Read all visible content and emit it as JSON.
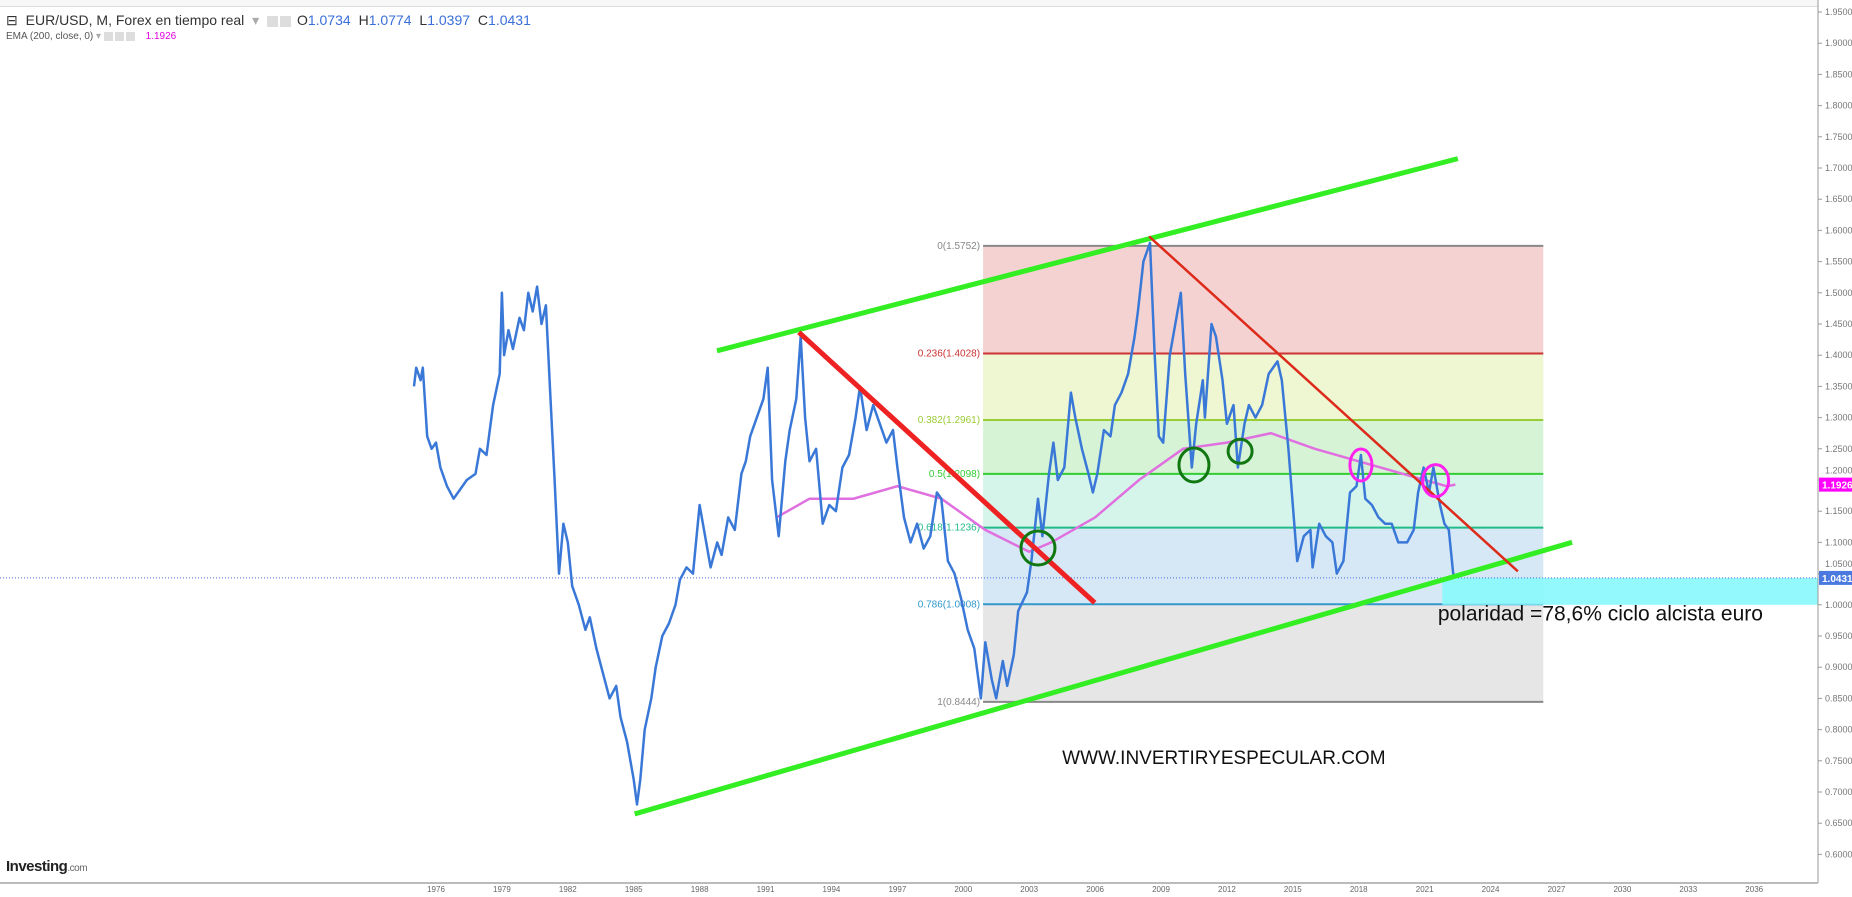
{
  "header": {
    "symbol": "EUR/USD, M, Forex en tiempo real",
    "open_label": "O",
    "open": "1.0734",
    "high_label": "H",
    "high": "1.0774",
    "low_label": "L",
    "low": "1.0397",
    "close_label": "C",
    "close": "1.0431",
    "indicator": "EMA (200, close, 0)",
    "indicator_value": "1.1926"
  },
  "logo": {
    "text": "Investing",
    "suffix": ".com"
  },
  "colors": {
    "price": "#3a78d8",
    "ema": "#e070e0",
    "channel": "#33ee22",
    "trend": "#ee2222",
    "last_price": "#4a7ae0",
    "ema_label": "#ff00ff",
    "zone": "#88f8fc"
  },
  "chart_data": {
    "type": "line",
    "title": "",
    "xlabel": "",
    "ylabel": "",
    "xlim": [
      1969.6,
      2039.2
    ],
    "ylim": [
      0.5836,
      1.969
    ],
    "x_ticks": [
      1976,
      1979,
      1982,
      1985,
      1988,
      1991,
      1994,
      1997,
      2000,
      2003,
      2006,
      2009,
      2012,
      2015,
      2018,
      2021,
      2024,
      2027,
      2030,
      2033,
      2036
    ],
    "y_ticks": [
      "0.6000",
      "0.6500",
      "0.7000",
      "0.7500",
      "0.8000",
      "0.8500",
      "0.9000",
      "0.9500",
      "1.0000",
      "1.0500",
      "1.1000",
      "1.1500",
      "1.2000",
      "1.2500",
      "1.3000",
      "1.3500",
      "1.4000",
      "1.4500",
      "1.5000",
      "1.5500",
      "1.6000",
      "1.6500",
      "1.7000",
      "1.7500",
      "1.8000",
      "1.8500",
      "1.9000",
      "1.9500"
    ],
    "last_price": "1.0431",
    "ema_last": "1.1926",
    "series": [
      {
        "name": "EUR/USD",
        "points": [
          [
            1975.0,
            1.35
          ],
          [
            1975.1,
            1.38
          ],
          [
            1975.3,
            1.36
          ],
          [
            1975.4,
            1.38
          ],
          [
            1975.6,
            1.27
          ],
          [
            1975.8,
            1.25
          ],
          [
            1976.0,
            1.26
          ],
          [
            1976.2,
            1.22
          ],
          [
            1976.5,
            1.19
          ],
          [
            1976.8,
            1.17
          ],
          [
            1977.0,
            1.18
          ],
          [
            1977.4,
            1.2
          ],
          [
            1977.8,
            1.21
          ],
          [
            1978.0,
            1.25
          ],
          [
            1978.3,
            1.24
          ],
          [
            1978.6,
            1.32
          ],
          [
            1978.9,
            1.37
          ],
          [
            1979.0,
            1.5
          ],
          [
            1979.1,
            1.4
          ],
          [
            1979.3,
            1.44
          ],
          [
            1979.5,
            1.41
          ],
          [
            1979.8,
            1.46
          ],
          [
            1980.0,
            1.44
          ],
          [
            1980.2,
            1.5
          ],
          [
            1980.4,
            1.47
          ],
          [
            1980.6,
            1.51
          ],
          [
            1980.8,
            1.45
          ],
          [
            1981.0,
            1.48
          ],
          [
            1981.2,
            1.34
          ],
          [
            1981.4,
            1.2
          ],
          [
            1981.6,
            1.05
          ],
          [
            1981.8,
            1.13
          ],
          [
            1982.0,
            1.1
          ],
          [
            1982.2,
            1.03
          ],
          [
            1982.5,
            1.0
          ],
          [
            1982.8,
            0.96
          ],
          [
            1983.0,
            0.98
          ],
          [
            1983.3,
            0.93
          ],
          [
            1983.6,
            0.89
          ],
          [
            1983.9,
            0.85
          ],
          [
            1984.2,
            0.87
          ],
          [
            1984.4,
            0.82
          ],
          [
            1984.7,
            0.78
          ],
          [
            1985.0,
            0.72
          ],
          [
            1985.15,
            0.68
          ],
          [
            1985.3,
            0.72
          ],
          [
            1985.5,
            0.8
          ],
          [
            1985.8,
            0.85
          ],
          [
            1986.0,
            0.9
          ],
          [
            1986.3,
            0.95
          ],
          [
            1986.6,
            0.97
          ],
          [
            1986.9,
            1.0
          ],
          [
            1987.1,
            1.04
          ],
          [
            1987.4,
            1.06
          ],
          [
            1987.7,
            1.05
          ],
          [
            1988.0,
            1.16
          ],
          [
            1988.2,
            1.12
          ],
          [
            1988.5,
            1.06
          ],
          [
            1988.8,
            1.1
          ],
          [
            1989.0,
            1.08
          ],
          [
            1989.3,
            1.14
          ],
          [
            1989.6,
            1.12
          ],
          [
            1989.9,
            1.21
          ],
          [
            1990.1,
            1.23
          ],
          [
            1990.3,
            1.27
          ],
          [
            1990.6,
            1.3
          ],
          [
            1990.9,
            1.33
          ],
          [
            1991.1,
            1.38
          ],
          [
            1991.3,
            1.2
          ],
          [
            1991.6,
            1.11
          ],
          [
            1991.9,
            1.23
          ],
          [
            1992.1,
            1.28
          ],
          [
            1992.4,
            1.33
          ],
          [
            1992.6,
            1.43
          ],
          [
            1992.8,
            1.3
          ],
          [
            1993.0,
            1.23
          ],
          [
            1993.3,
            1.25
          ],
          [
            1993.6,
            1.13
          ],
          [
            1993.9,
            1.16
          ],
          [
            1994.2,
            1.15
          ],
          [
            1994.5,
            1.22
          ],
          [
            1994.8,
            1.24
          ],
          [
            1995.1,
            1.3
          ],
          [
            1995.3,
            1.35
          ],
          [
            1995.6,
            1.28
          ],
          [
            1995.9,
            1.32
          ],
          [
            1996.2,
            1.29
          ],
          [
            1996.5,
            1.26
          ],
          [
            1996.8,
            1.28
          ],
          [
            1997.0,
            1.22
          ],
          [
            1997.3,
            1.14
          ],
          [
            1997.6,
            1.1
          ],
          [
            1997.9,
            1.13
          ],
          [
            1998.2,
            1.09
          ],
          [
            1998.5,
            1.11
          ],
          [
            1998.8,
            1.18
          ],
          [
            1999.0,
            1.17
          ],
          [
            1999.3,
            1.07
          ],
          [
            1999.6,
            1.05
          ],
          [
            1999.9,
            1.01
          ],
          [
            2000.2,
            0.96
          ],
          [
            2000.5,
            0.93
          ],
          [
            2000.8,
            0.85
          ],
          [
            2001.0,
            0.94
          ],
          [
            2001.3,
            0.88
          ],
          [
            2001.5,
            0.85
          ],
          [
            2001.8,
            0.91
          ],
          [
            2002.0,
            0.87
          ],
          [
            2002.3,
            0.92
          ],
          [
            2002.5,
            0.99
          ],
          [
            2002.9,
            1.02
          ],
          [
            2003.1,
            1.07
          ],
          [
            2003.4,
            1.17
          ],
          [
            2003.6,
            1.11
          ],
          [
            2003.9,
            1.21
          ],
          [
            2004.1,
            1.26
          ],
          [
            2004.3,
            1.2
          ],
          [
            2004.6,
            1.22
          ],
          [
            2004.9,
            1.34
          ],
          [
            2005.1,
            1.3
          ],
          [
            2005.4,
            1.25
          ],
          [
            2005.7,
            1.21
          ],
          [
            2005.9,
            1.18
          ],
          [
            2006.1,
            1.21
          ],
          [
            2006.4,
            1.28
          ],
          [
            2006.7,
            1.27
          ],
          [
            2006.9,
            1.32
          ],
          [
            2007.2,
            1.34
          ],
          [
            2007.5,
            1.37
          ],
          [
            2007.8,
            1.43
          ],
          [
            2007.95,
            1.47
          ],
          [
            2008.2,
            1.55
          ],
          [
            2008.5,
            1.58
          ],
          [
            2008.7,
            1.41
          ],
          [
            2008.9,
            1.27
          ],
          [
            2009.1,
            1.26
          ],
          [
            2009.4,
            1.4
          ],
          [
            2009.7,
            1.46
          ],
          [
            2009.9,
            1.5
          ],
          [
            2010.1,
            1.37
          ],
          [
            2010.4,
            1.22
          ],
          [
            2010.6,
            1.29
          ],
          [
            2010.9,
            1.36
          ],
          [
            2011.0,
            1.3
          ],
          [
            2011.3,
            1.45
          ],
          [
            2011.5,
            1.43
          ],
          [
            2011.8,
            1.36
          ],
          [
            2012.0,
            1.29
          ],
          [
            2012.3,
            1.32
          ],
          [
            2012.5,
            1.22
          ],
          [
            2012.8,
            1.29
          ],
          [
            2013.0,
            1.32
          ],
          [
            2013.3,
            1.3
          ],
          [
            2013.6,
            1.32
          ],
          [
            2013.9,
            1.37
          ],
          [
            2014.3,
            1.39
          ],
          [
            2014.5,
            1.36
          ],
          [
            2014.8,
            1.25
          ],
          [
            2015.0,
            1.16
          ],
          [
            2015.2,
            1.07
          ],
          [
            2015.5,
            1.11
          ],
          [
            2015.8,
            1.12
          ],
          [
            2015.9,
            1.06
          ],
          [
            2016.2,
            1.13
          ],
          [
            2016.5,
            1.11
          ],
          [
            2016.8,
            1.1
          ],
          [
            2017.0,
            1.05
          ],
          [
            2017.3,
            1.07
          ],
          [
            2017.6,
            1.18
          ],
          [
            2017.9,
            1.19
          ],
          [
            2018.1,
            1.24
          ],
          [
            2018.3,
            1.17
          ],
          [
            2018.6,
            1.16
          ],
          [
            2018.9,
            1.14
          ],
          [
            2019.2,
            1.13
          ],
          [
            2019.5,
            1.13
          ],
          [
            2019.8,
            1.1
          ],
          [
            2020.2,
            1.1
          ],
          [
            2020.5,
            1.12
          ],
          [
            2020.7,
            1.18
          ],
          [
            2020.95,
            1.22
          ],
          [
            2021.2,
            1.18
          ],
          [
            2021.4,
            1.22
          ],
          [
            2021.7,
            1.16
          ],
          [
            2021.9,
            1.13
          ],
          [
            2022.1,
            1.12
          ],
          [
            2022.3,
            1.05
          ],
          [
            2022.4,
            1.0431
          ]
        ]
      },
      {
        "name": "EMA (200, close, 0)",
        "points": [
          [
            1991.5,
            1.14
          ],
          [
            1993,
            1.17
          ],
          [
            1995,
            1.17
          ],
          [
            1997,
            1.19
          ],
          [
            1999,
            1.17
          ],
          [
            2001,
            1.12
          ],
          [
            2003,
            1.085
          ],
          [
            2004,
            1.1
          ],
          [
            2006,
            1.14
          ],
          [
            2008,
            1.2
          ],
          [
            2010,
            1.25
          ],
          [
            2012,
            1.26
          ],
          [
            2014,
            1.275
          ],
          [
            2016,
            1.25
          ],
          [
            2018,
            1.23
          ],
          [
            2020,
            1.21
          ],
          [
            2022,
            1.19
          ],
          [
            2022.4,
            1.1926
          ]
        ]
      }
    ],
    "fibonacci": {
      "range": [
        2000.9,
        2026.4
      ],
      "levels": [
        {
          "ratio": 0,
          "label": "0(1.5752)",
          "price": 1.5752,
          "color": "#888888",
          "fill": "#f5d2d2"
        },
        {
          "ratio": 0.236,
          "label": "0.236(1.4028)",
          "price": 1.4028,
          "color": "#cc3333",
          "fill": "#eef6d2"
        },
        {
          "ratio": 0.382,
          "label": "0.382(1.2961)",
          "price": 1.2961,
          "color": "#99cc33",
          "fill": "#d6f3d6"
        },
        {
          "ratio": 0.5,
          "label": "0.5(1.2098)",
          "price": 1.2098,
          "color": "#33cc33",
          "fill": "#d6f5ea"
        },
        {
          "ratio": 0.618,
          "label": "0.618(1.1236)",
          "price": 1.1236,
          "color": "#22bb88",
          "fill": "#d6e8f5"
        },
        {
          "ratio": 0.786,
          "label": "0.786(1.0008)",
          "price": 1.0008,
          "color": "#3399cc",
          "fill": "#e6e6e6"
        },
        {
          "ratio": 1,
          "label": "1(0.8444)",
          "price": 0.8444,
          "color": "#888888",
          "fill": null
        }
      ]
    },
    "trendlines": [
      {
        "name": "upper-channel",
        "color": "#33ee22",
        "from": [
          1988.9,
          1.408
        ],
        "to": [
          2022.4,
          1.714
        ]
      },
      {
        "name": "lower-channel",
        "color": "#33ee22",
        "from": [
          1985.15,
          0.666
        ],
        "to": [
          2027.6,
          1.099
        ]
      },
      {
        "name": "downtrend-1992",
        "color": "#ee2222",
        "from": [
          1992.6,
          1.434
        ],
        "to": [
          2005.9,
          1.006
        ]
      },
      {
        "name": "downtrend-2008",
        "color": "#dd2a1a",
        "from": [
          2008.5,
          1.589
        ],
        "to": [
          2025.2,
          1.055
        ]
      }
    ],
    "zone": {
      "from_year": 2021.8,
      "top": 1.0431,
      "bottom": 1.0
    },
    "markers": [
      {
        "type": "green-circle",
        "at": [
          2003.4,
          1.091
        ]
      },
      {
        "type": "green-circle",
        "at": [
          2010.5,
          1.224
        ]
      },
      {
        "type": "green-circle",
        "at": [
          2012.6,
          1.246
        ]
      },
      {
        "type": "magenta-ellipse",
        "at": [
          2018.1,
          1.224
        ]
      },
      {
        "type": "magenta-ellipse",
        "at": [
          2021.5,
          1.199
        ]
      }
    ],
    "annotations": [
      {
        "text": "polaridad =78,6% ciclo alcista euro",
        "at": [
          2021.6,
          0.975
        ]
      },
      {
        "text": "WWW.INVERTIRYESPECULAR.COM",
        "at": [
          2004.5,
          0.745
        ]
      }
    ]
  }
}
